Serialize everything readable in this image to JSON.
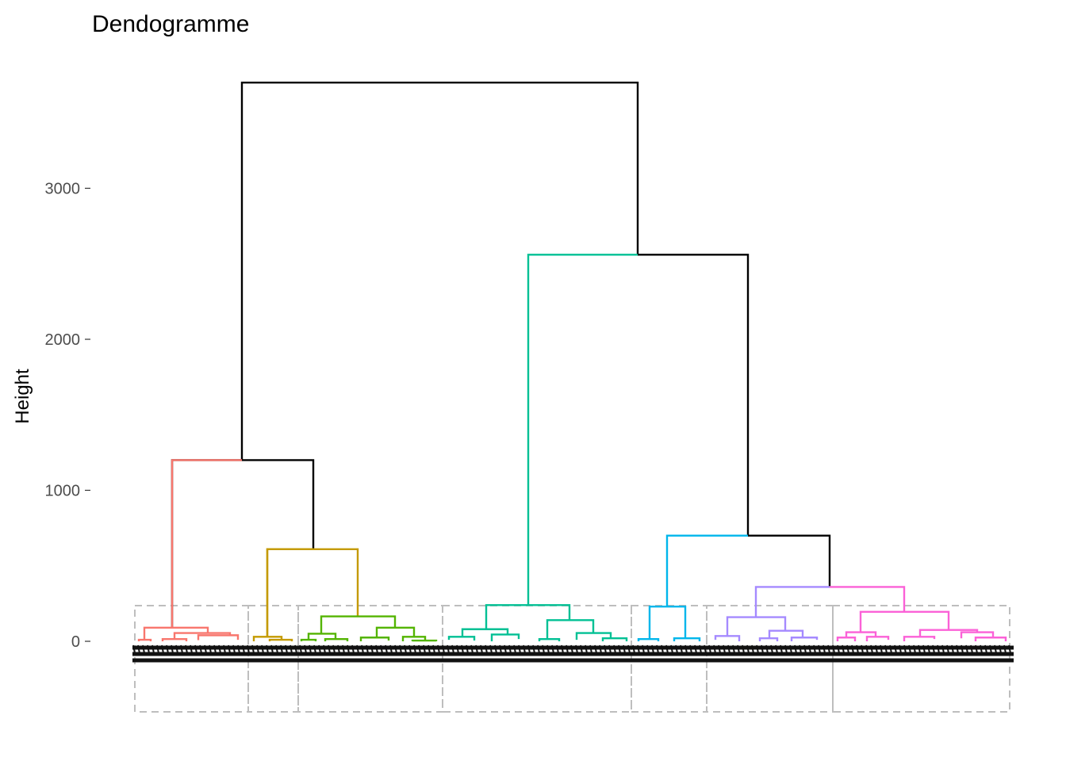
{
  "chart_data": {
    "type": "dendrogram",
    "title": "Dendogramme",
    "ylabel": "Height",
    "xlabel": "",
    "y_ticks": [
      0,
      1000,
      2000,
      3000
    ],
    "ylim": [
      -500,
      3800
    ],
    "grid": false,
    "legend": "none",
    "cluster_count": 7,
    "clusters": [
      {
        "id": 1,
        "color": "#F8766D"
      },
      {
        "id": 2,
        "color": "#C49A00"
      },
      {
        "id": 3,
        "color": "#53B400"
      },
      {
        "id": 4,
        "color": "#00C094"
      },
      {
        "id": 5,
        "color": "#00B6EB"
      },
      {
        "id": 6,
        "color": "#A58AFF"
      },
      {
        "id": 7,
        "color": "#FB61D7"
      }
    ],
    "merges": [
      {
        "height": 3700,
        "left": "A",
        "right": "B"
      },
      {
        "height": 2560,
        "left": "cluster 4",
        "right": "C"
      },
      {
        "height": 1200,
        "left": "cluster 1",
        "right": "D"
      },
      {
        "height": 700,
        "left": "cluster 5",
        "right": "E"
      },
      {
        "height": 610,
        "left": "cluster 2",
        "right": "cluster 3"
      },
      {
        "height": 360,
        "left": "cluster 6",
        "right": "cluster 7"
      }
    ],
    "rect_border_color": "#BEBEBE"
  }
}
